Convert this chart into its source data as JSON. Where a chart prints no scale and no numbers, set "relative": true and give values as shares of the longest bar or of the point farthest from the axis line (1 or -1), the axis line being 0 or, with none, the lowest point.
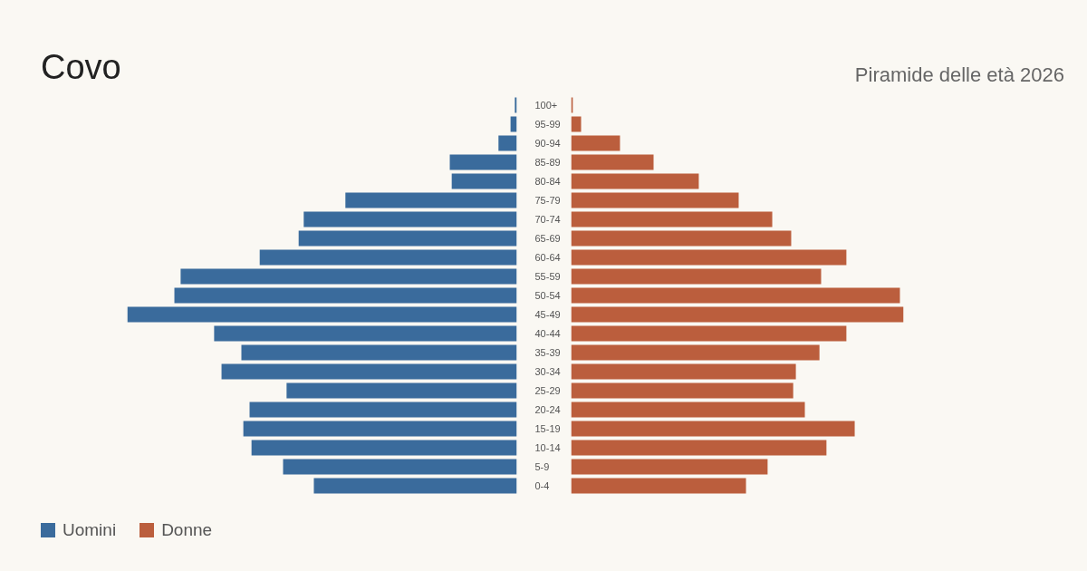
{
  "chart_data": [
    {
      "type": "bar",
      "orientation": "horizontal",
      "relative": true,
      "title": "Covo",
      "categories": [
        "100+",
        "95-99",
        "90-94",
        "85-89",
        "80-84",
        "75-79",
        "70-74",
        "65-69",
        "60-64",
        "55-59",
        "50-54",
        "45-49",
        "40-44",
        "35-39",
        "30-34",
        "25-29",
        "20-24",
        "15-19",
        "10-14",
        "5-9",
        "0-4"
      ],
      "series": [
        {
          "name": "Uomini",
          "color": "#3a6b9c",
          "values": [
            -0.005,
            -0.016,
            -0.047,
            -0.172,
            -0.167,
            -0.44,
            -0.547,
            -0.56,
            -0.66,
            -0.863,
            -0.879,
            -1,
            -0.777,
            -0.707,
            -0.758,
            -0.591,
            -0.686,
            -0.702,
            -0.681,
            -0.6,
            -0.521
          ]
        }
      ],
      "legend": "bottom left"
    },
    {
      "type": "bar",
      "orientation": "horizontal",
      "relative": true,
      "subtitle": "Piramide delle età 2026",
      "categories": [
        "100+",
        "95-99",
        "90-94",
        "85-89",
        "80-84",
        "75-79",
        "70-74",
        "65-69",
        "60-64",
        "55-59",
        "50-54",
        "45-49",
        "40-44",
        "35-39",
        "30-34",
        "25-29",
        "20-24",
        "15-19",
        "10-14",
        "5-9",
        "0-4"
      ],
      "tick_labels": false,
      "series": [
        {
          "name": "Donne",
          "color": "#bb5e3d",
          "values": [
            0.005,
            0.03,
            0.147,
            0.248,
            0.384,
            0.504,
            0.605,
            0.662,
            0.828,
            0.752,
            0.989,
            1,
            0.828,
            0.747,
            0.676,
            0.668,
            0.703,
            0.853,
            0.768,
            0.591,
            0.526
          ]
        }
      ],
      "legend": "bottom left"
    }
  ]
}
